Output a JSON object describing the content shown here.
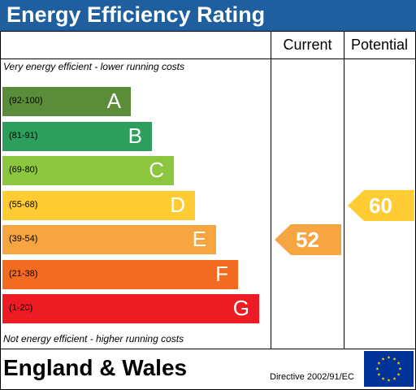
{
  "header": {
    "title": "Energy Efficiency Rating"
  },
  "columns": {
    "current": "Current",
    "potential": "Potential"
  },
  "notes": {
    "top": "Very energy efficient - lower running costs",
    "bottom": "Not energy efficient - higher running costs"
  },
  "chart_data": {
    "type": "bar",
    "title": "Energy Efficiency Rating",
    "bands": [
      {
        "range": "(92-100)",
        "letter": "A",
        "color": "#5a8c3a"
      },
      {
        "range": "(81-91)",
        "letter": "B",
        "color": "#2e9e5e"
      },
      {
        "range": "(69-80)",
        "letter": "C",
        "color": "#8cc63f"
      },
      {
        "range": "(55-68)",
        "letter": "D",
        "color": "#ffcc33"
      },
      {
        "range": "(39-54)",
        "letter": "E",
        "color": "#f7a541"
      },
      {
        "range": "(21-38)",
        "letter": "F",
        "color": "#f26b21"
      },
      {
        "range": "(1-20)",
        "letter": "G",
        "color": "#ed1c24"
      }
    ],
    "current": {
      "value": 52,
      "band": "E",
      "color": "#f7a541"
    },
    "potential": {
      "value": 60,
      "band": "D",
      "color": "#ffcc33"
    }
  },
  "footer": {
    "region": "England & Wales",
    "directive": "Directive 2002/91/EC",
    "flag": "eu-flag-icon"
  }
}
